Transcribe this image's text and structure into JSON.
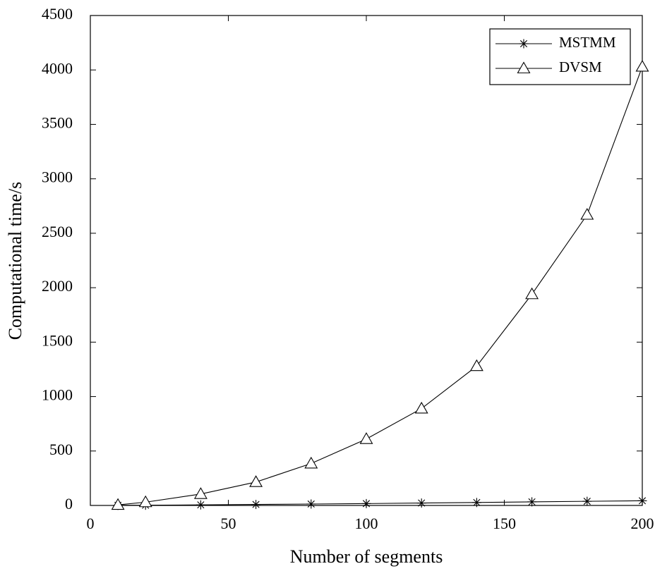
{
  "chart_data": {
    "type": "line",
    "title": "",
    "xlabel": "Number of segments",
    "ylabel": "Computational time/s",
    "xlim": [
      0,
      200
    ],
    "ylim": [
      0,
      4500
    ],
    "xticks": [
      "0",
      "50",
      "100",
      "150",
      "200"
    ],
    "yticks": [
      "0",
      "500",
      "1000",
      "1500",
      "2000",
      "2500",
      "3000",
      "3500",
      "4000",
      "4500"
    ],
    "grid": false,
    "legend_position": "top-right",
    "x": [
      10,
      20,
      40,
      60,
      80,
      100,
      120,
      140,
      160,
      180,
      200
    ],
    "series": [
      {
        "name": "MSTMM",
        "marker": "asterisk",
        "color": "#000000",
        "values": [
          1,
          2,
          5,
          9,
          13,
          17,
          22,
          27,
          33,
          38,
          43
        ]
      },
      {
        "name": "DVSM",
        "marker": "triangle",
        "color": "#000000",
        "values": [
          5,
          30,
          105,
          215,
          385,
          610,
          890,
          1280,
          1940,
          2670,
          4030
        ]
      }
    ]
  }
}
